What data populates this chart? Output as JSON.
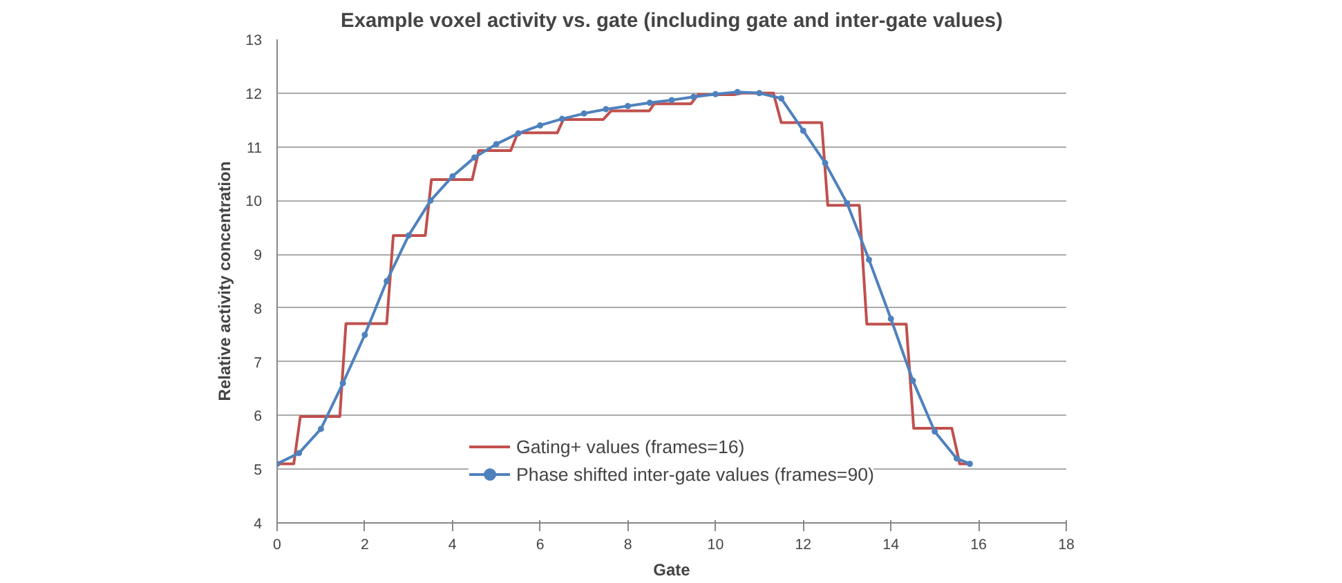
{
  "chart_data": {
    "type": "line",
    "title": "Example voxel activity vs. gate (including gate and inter-gate values)",
    "xlabel": "Gate",
    "ylabel": "Relative activity concentration",
    "xlim": [
      0,
      18
    ],
    "xticks": [
      0,
      2,
      4,
      6,
      8,
      10,
      12,
      14,
      16,
      18
    ],
    "ylim": [
      4,
      13
    ],
    "yticks": [
      4,
      5,
      6,
      7,
      8,
      9,
      10,
      11,
      12,
      13
    ],
    "grid": "y",
    "legend": "bottom",
    "series": [
      {
        "name": "Gating+ values (frames=16)",
        "color": "#c0504d",
        "marker": "none",
        "x": [
          0,
          0.38,
          0.53,
          1.43,
          1.57,
          2.5,
          2.65,
          3.38,
          3.52,
          4.45,
          4.6,
          5.33,
          5.49,
          6.39,
          6.53,
          7.44,
          7.62,
          8.49,
          8.6,
          9.44,
          9.6,
          10.43,
          10.6,
          11.32,
          11.5,
          12.42,
          12.56,
          13.28,
          13.45,
          14.35,
          14.52,
          15.39,
          15.57,
          15.75
        ],
        "values": [
          5.1,
          5.1,
          5.98,
          5.98,
          7.71,
          7.71,
          9.35,
          9.35,
          10.39,
          10.39,
          10.93,
          10.93,
          11.26,
          11.26,
          11.51,
          11.51,
          11.67,
          11.67,
          11.8,
          11.8,
          11.97,
          11.97,
          12.0,
          12.0,
          11.45,
          11.45,
          9.91,
          9.91,
          7.7,
          7.7,
          5.76,
          5.76,
          5.1,
          5.1
        ]
      },
      {
        "name": "Phase shifted inter-gate values (frames=90)",
        "color": "#4f81bd",
        "marker": "circle",
        "x": [
          0,
          0.5,
          1,
          1.5,
          2,
          2.5,
          3,
          3.5,
          4,
          4.5,
          5,
          5.5,
          6,
          6.5,
          7,
          7.5,
          8,
          8.5,
          9,
          9.5,
          10,
          10.5,
          11,
          11.5,
          12,
          12.5,
          13,
          13.5,
          14,
          14.5,
          15,
          15.5,
          15.8
        ],
        "values": [
          5.1,
          5.3,
          5.75,
          6.6,
          7.5,
          8.5,
          9.35,
          10.0,
          10.45,
          10.8,
          11.05,
          11.25,
          11.4,
          11.52,
          11.62,
          11.7,
          11.76,
          11.82,
          11.87,
          11.93,
          11.98,
          12.02,
          12.0,
          11.9,
          11.3,
          10.7,
          9.95,
          8.9,
          7.8,
          6.65,
          5.7,
          5.2,
          5.1
        ]
      }
    ]
  }
}
